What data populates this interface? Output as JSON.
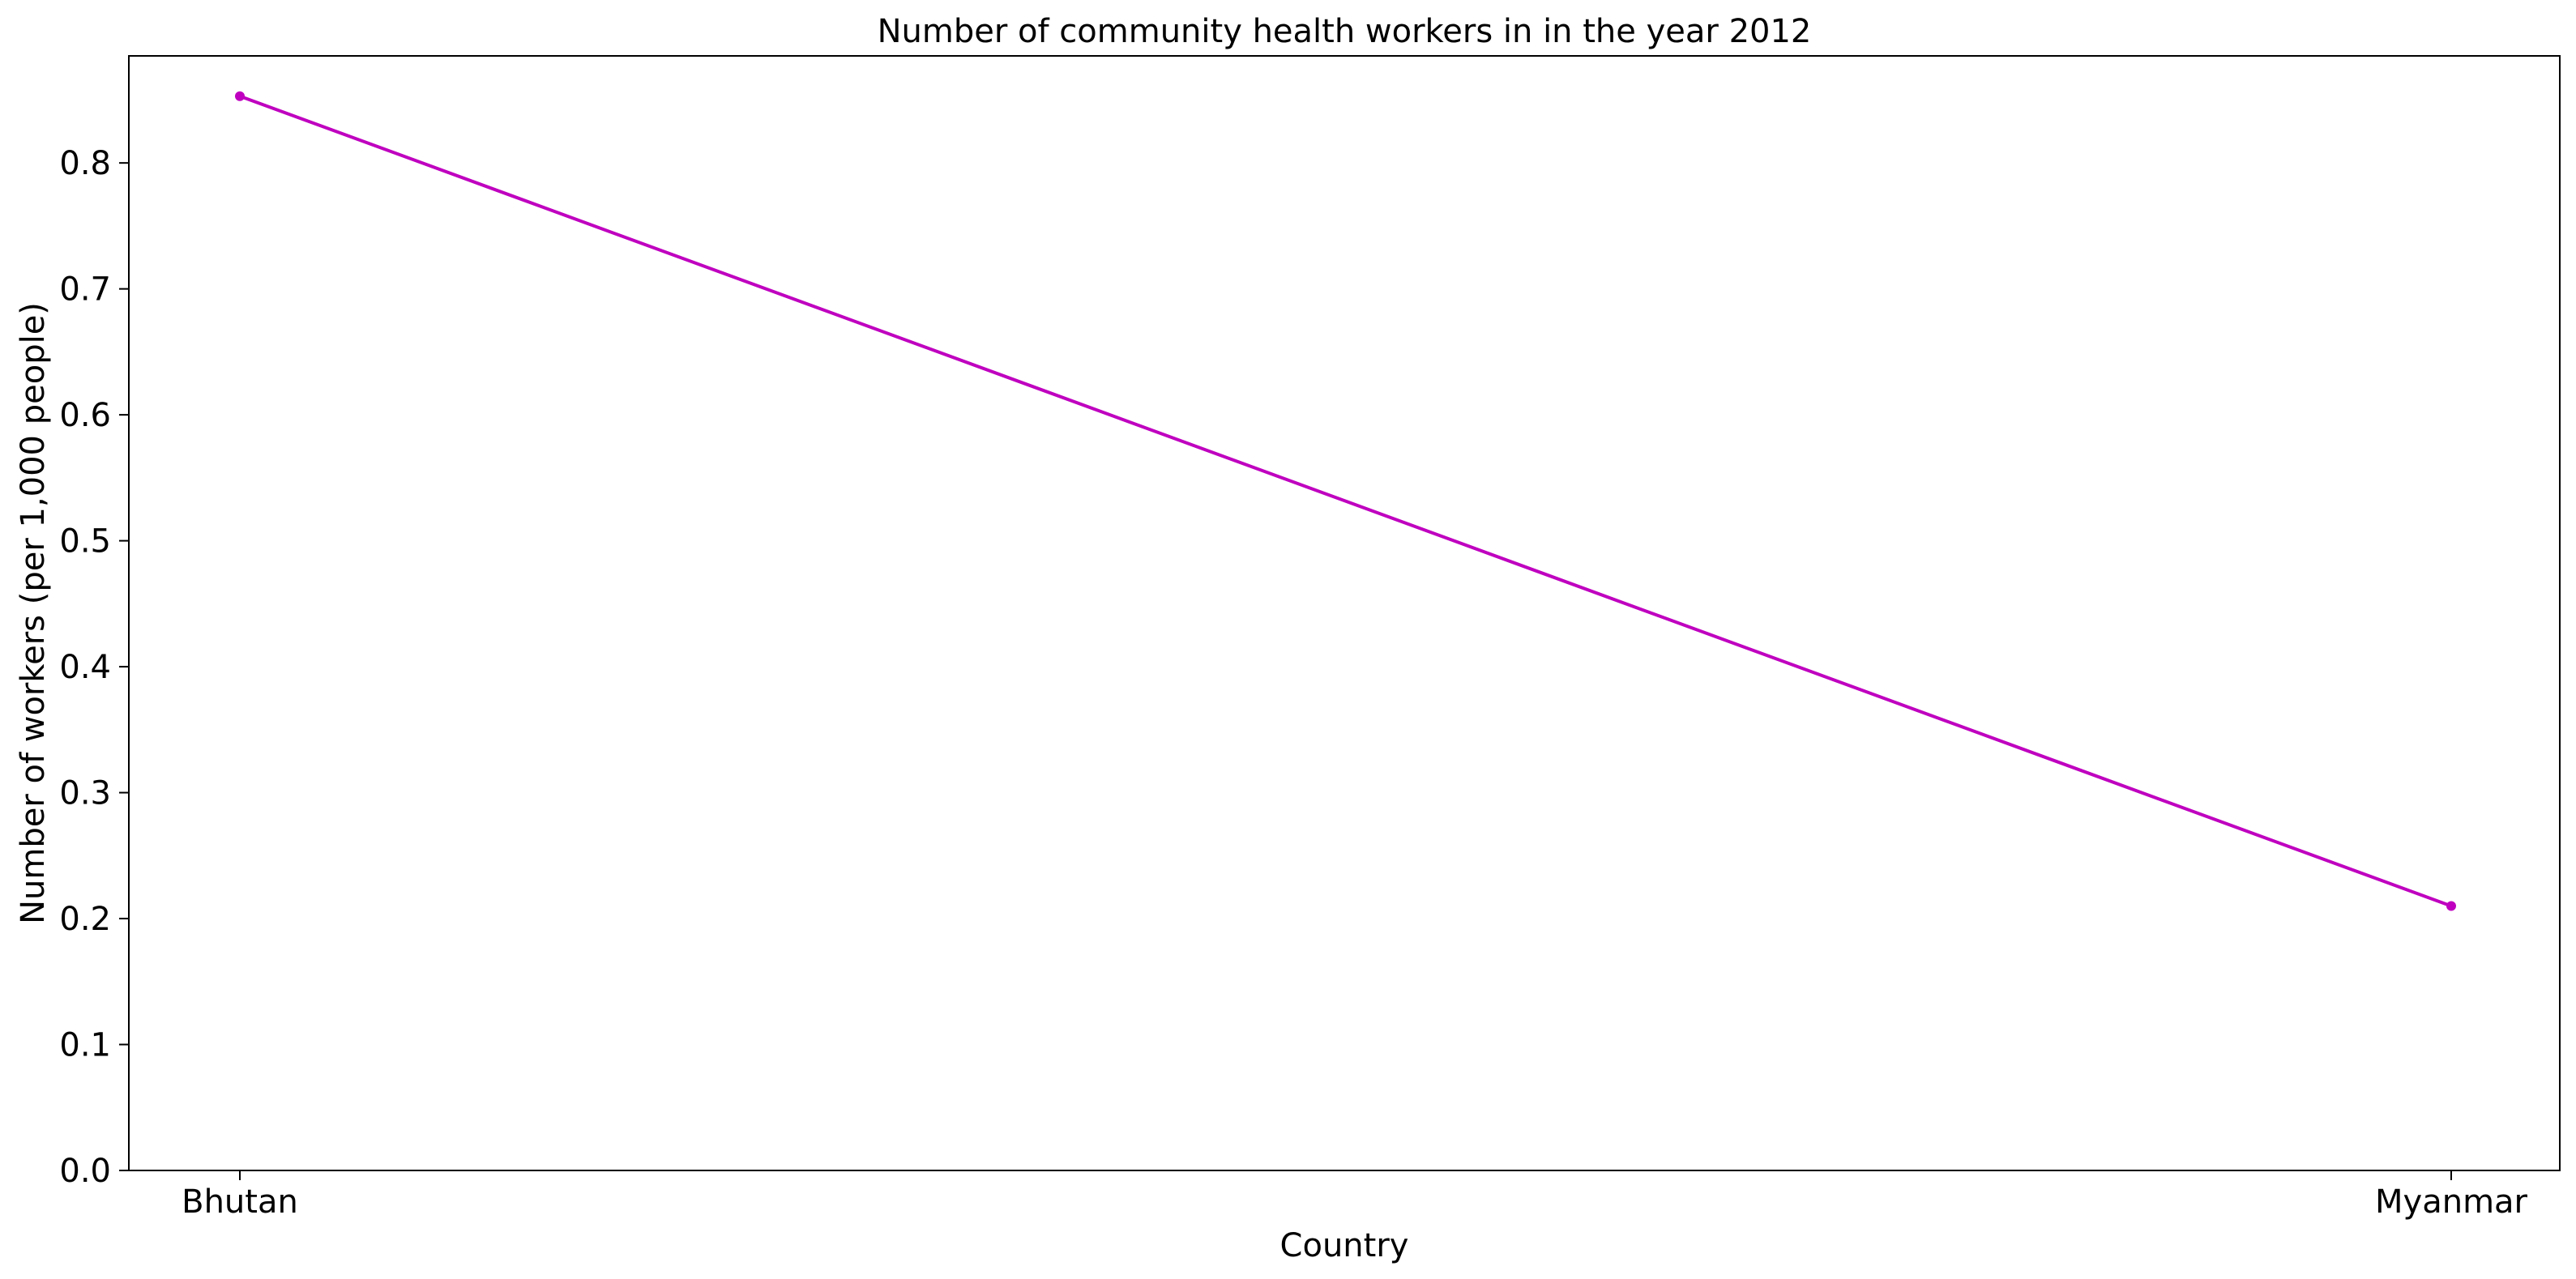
{
  "chart_data": {
    "type": "line",
    "title": "Number of community health workers in in the year 2012",
    "xlabel": "Country",
    "ylabel": "Number of workers (per 1,000 people)",
    "categories": [
      "Bhutan",
      "Myanmar"
    ],
    "series": [
      {
        "values": [
          0.853,
          0.21
        ],
        "color": "#bf00bf"
      }
    ],
    "ylim": [
      0.0,
      0.885
    ],
    "yticks": [
      0.0,
      0.1,
      0.2,
      0.3,
      0.4,
      0.5,
      0.6,
      0.7,
      0.8
    ],
    "ytick_labels": [
      "0.0",
      "0.1",
      "0.2",
      "0.3",
      "0.4",
      "0.5",
      "0.6",
      "0.7",
      "0.8"
    ],
    "grid": false,
    "legend": "none"
  }
}
